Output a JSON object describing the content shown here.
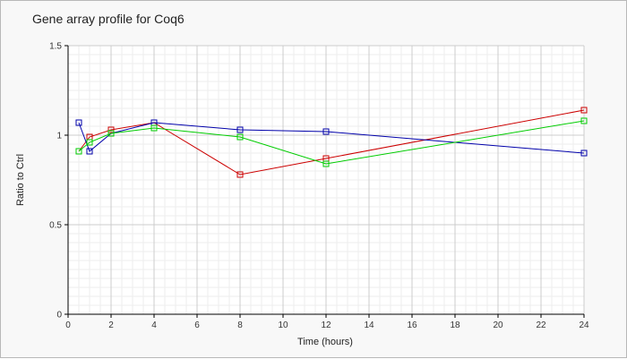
{
  "chart_data": {
    "type": "line",
    "title": "Gene array profile for Coq6",
    "xlabel": "Time (hours)",
    "ylabel": "Ratio to Ctrl",
    "xlim": [
      0,
      24
    ],
    "ylim": [
      0,
      1.5
    ],
    "x_ticks": [
      "0",
      "2",
      "4",
      "6",
      "8",
      "10",
      "12",
      "14",
      "16",
      "18",
      "20",
      "22",
      "24"
    ],
    "y_ticks": [
      "0",
      "0.5",
      "1",
      "1.5"
    ],
    "grid": true,
    "legend": "none",
    "marker": "square",
    "series": [
      {
        "color": "#cc0000",
        "points": [
          [
            0.5,
            0.91
          ],
          [
            1,
            0.99
          ],
          [
            2,
            1.03
          ],
          [
            4,
            1.07
          ],
          [
            8,
            0.78
          ],
          [
            12,
            0.87
          ],
          [
            24,
            1.14
          ]
        ]
      },
      {
        "color": "#0000aa",
        "points": [
          [
            0.5,
            1.07
          ],
          [
            1,
            0.91
          ],
          [
            2,
            1.01
          ],
          [
            4,
            1.07
          ],
          [
            8,
            1.03
          ],
          [
            12,
            1.02
          ],
          [
            24,
            0.9
          ]
        ]
      },
      {
        "color": "#00cc00",
        "points": [
          [
            0.5,
            0.91
          ],
          [
            1,
            0.96
          ],
          [
            2,
            1.01
          ],
          [
            4,
            1.04
          ],
          [
            8,
            0.99
          ],
          [
            12,
            0.84
          ],
          [
            24,
            1.08
          ]
        ]
      }
    ]
  }
}
